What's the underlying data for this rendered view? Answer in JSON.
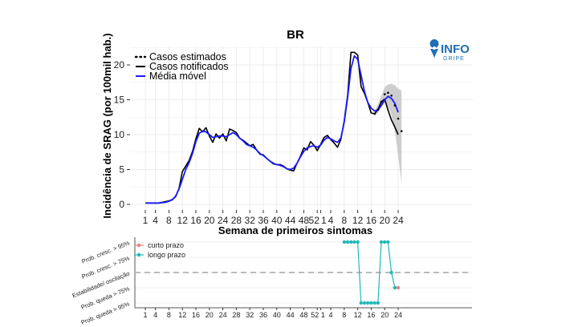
{
  "chart_data": [
    {
      "type": "line",
      "title": "BR",
      "xlabel": "Semana de primeiros sintomas",
      "ylabel": "Incidência de SRAG (por 100mil hab.)",
      "ylim": [
        0,
        22
      ],
      "yticks": [
        0,
        5,
        10,
        15,
        20
      ],
      "xticks": [
        "1",
        "4",
        "8",
        "12",
        "16",
        "20",
        "24",
        "28",
        "32",
        "36",
        "40",
        "44",
        "48",
        "52",
        "1",
        "4",
        "8",
        "12",
        "16",
        "20",
        "24"
      ],
      "grid": true,
      "legend_position": "top-left",
      "series": [
        {
          "name": "Casos notificados",
          "style": "black-solid",
          "values": [
            0.2,
            0.2,
            0.2,
            0.2,
            0.2,
            0.3,
            0.4,
            0.5,
            0.7,
            1.1,
            2.3,
            4.7,
            5.5,
            6.3,
            7.6,
            9.4,
            10.9,
            10.4,
            11.0,
            9.8,
            8.9,
            10.1,
            9.5,
            10.1,
            9.1,
            10.8,
            10.6,
            10.3,
            9.5,
            9.2,
            8.8,
            8.4,
            8.6,
            7.8,
            7.2,
            7.1,
            6.6,
            6.2,
            5.8,
            5.7,
            5.7,
            5.5,
            5.1,
            4.9,
            4.8,
            5.9,
            6.9,
            8.1,
            7.8,
            9.0,
            8.5,
            7.7,
            8.6,
            9.6,
            9.9,
            9.3,
            8.8,
            8.2,
            9.3,
            12.0,
            15.6,
            21.8,
            21.8,
            21.4,
            16.9,
            15.9,
            14.6,
            13.1,
            13.0,
            13.6,
            14.7,
            15.1,
            13.5,
            12.1,
            11.1,
            10.0
          ]
        },
        {
          "name": "Média móvel",
          "style": "blue-solid",
          "values": [
            0.2,
            0.2,
            0.2,
            0.2,
            0.2,
            0.25,
            0.3,
            0.45,
            0.65,
            1.2,
            2.2,
            3.6,
            5.0,
            6.0,
            7.3,
            9.0,
            10.2,
            10.5,
            10.4,
            10.0,
            9.6,
            9.7,
            9.8,
            9.8,
            9.7,
            10.0,
            10.3,
            10.0,
            9.5,
            9.1,
            8.6,
            8.4,
            8.2,
            7.8,
            7.3,
            7.0,
            6.6,
            6.2,
            5.9,
            5.7,
            5.6,
            5.4,
            5.1,
            5.0,
            5.2,
            5.9,
            6.8,
            7.6,
            8.1,
            8.3,
            8.4,
            8.2,
            8.5,
            9.2,
            9.6,
            9.4,
            9.1,
            8.9,
            9.5,
            11.8,
            15.3,
            19.5,
            21.3,
            20.8,
            18.5,
            16.2,
            14.6,
            13.8,
            13.4,
            13.5,
            14.2,
            15.0,
            15.5,
            15.2,
            14.5,
            13.2
          ]
        },
        {
          "name": "Casos estimados",
          "style": "black-dotted",
          "start_index": 68,
          "values": [
            13.0,
            13.6,
            14.7,
            15.8,
            16.0,
            15.6,
            14.2,
            12.3,
            10.5
          ]
        }
      ],
      "prediction_band": {
        "start_index": 68,
        "lower": [
          12.6,
          13.1,
          14.0,
          14.5,
          14.0,
          12.8,
          10.5,
          7.0,
          3.0
        ],
        "upper": [
          13.4,
          14.3,
          15.6,
          16.8,
          17.2,
          17.3,
          17.1,
          16.6,
          16.3
        ]
      }
    },
    {
      "type": "line",
      "xlabel": "",
      "ylabel": "",
      "categories_y": [
        "Prob. cresc. > 95%",
        "Prob. cresc. > 75%",
        "Estabilidade/ oscilação",
        "Prob. queda > 75%",
        "Prob. queda > 95%"
      ],
      "xticks": [
        "1",
        "4",
        "8",
        "12",
        "16",
        "20",
        "24",
        "28",
        "32",
        "36",
        "40",
        "44",
        "48",
        "52",
        "1",
        "4",
        "8",
        "12",
        "16",
        "20",
        "24"
      ],
      "legend_position": "top-left",
      "series": [
        {
          "name": "curto prazo",
          "color": "#f07f7f",
          "x_index": [
            74,
            75
          ],
          "levels": [
            -1,
            -1
          ]
        },
        {
          "name": "longo prazo",
          "color": "#22b8b8",
          "x_index": [
            59,
            60,
            61,
            62,
            63,
            64,
            65,
            66,
            67,
            68,
            69,
            70,
            71,
            72,
            73,
            74
          ],
          "levels": [
            2,
            2,
            2,
            2,
            2,
            -2,
            -2,
            -2,
            -2,
            -2,
            -2,
            2,
            2,
            2,
            0,
            -1
          ]
        }
      ]
    }
  ],
  "logo": {
    "main": "INFO",
    "sub": "GRIPE"
  },
  "colors": {
    "notified": "#000000",
    "moving_average": "#1a1aff",
    "band": "#bdbdbd",
    "short_term": "#f07f7f",
    "long_term": "#22b8b8",
    "stability_line": "#bbbbbb",
    "logo": "#1f6fb4"
  }
}
